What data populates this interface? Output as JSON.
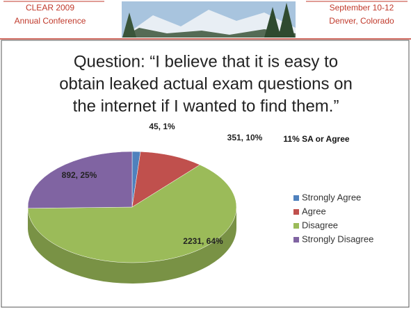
{
  "header": {
    "left": [
      "CLEAR 2009",
      "Annual Conference"
    ],
    "right": [
      "September 10-12",
      "Denver, Colorado"
    ]
  },
  "chart_data": {
    "type": "pie",
    "title": [
      "Question: “I believe that it is easy to",
      "obtain leaked actual exam questions on",
      "the internet if I wanted to find them.”"
    ],
    "annotation": "11% SA or Agree",
    "categories": [
      "Strongly Agree",
      "Agree",
      "Disagree",
      "Strongly Disagree"
    ],
    "values": [
      45,
      351,
      2231,
      892
    ],
    "value_labels": [
      "45, 1%",
      "351, 10%",
      "2231, 64%",
      "892, 25%"
    ],
    "colors": [
      "#4f81bd",
      "#c0504d",
      "#9bbb59",
      "#8064a2"
    ],
    "legend": "right"
  }
}
